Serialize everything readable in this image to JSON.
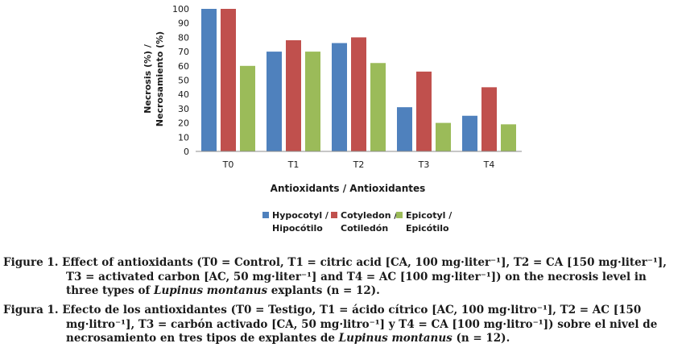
{
  "chart_data": {
    "type": "bar",
    "categories": [
      "T0",
      "T1",
      "T2",
      "T3",
      "T4"
    ],
    "series": [
      {
        "name": "Hypocotyl / Hipocótilo",
        "name_line1": "Hypocotyl /",
        "name_line2": "Hipocótilo",
        "color": "#4F81BD",
        "values": [
          100,
          70,
          76,
          31,
          25
        ]
      },
      {
        "name": "Cotyledon / Cotiledón",
        "name_line1": "Cotyledon /",
        "name_line2": "Cotiledón",
        "color": "#C0504D",
        "values": [
          100,
          78,
          80,
          56,
          45
        ]
      },
      {
        "name": "Epicotyl / Epicótilo",
        "name_line1": "Epicotyl /",
        "name_line2": "Epicótilo",
        "color": "#9BBB59",
        "values": [
          60,
          70,
          62,
          20,
          19
        ]
      }
    ],
    "ylabel_line1": "Necrosis (%) /",
    "ylabel_line2": "Necrosamiento (%)",
    "xlabel": "Antioxidants / Antioxidantes",
    "ylim": [
      0,
      100
    ],
    "yticks": [
      0,
      10,
      20,
      30,
      40,
      50,
      60,
      70,
      80,
      90,
      100
    ],
    "legend_position": "bottom"
  },
  "caption_en": {
    "prefix": "Figure 1. Effect of antioxidants (T0 = Control, T1 = citric acid [CA, 100 mg·liter⁻¹], T2 = CA [150 mg·liter⁻¹], T3 = activated carbon [AC, 50 mg·liter⁻¹] and T4 = AC [100 mg·liter⁻¹]) on the necrosis level in three types of ",
    "species": "Lupinus montanus",
    "suffix": " explants (n = 12)."
  },
  "caption_es": {
    "prefix": "Figura 1. Efecto de los antioxidantes (T0 = Testigo, T1 = ácido cítrico [AC, 100 mg·litro⁻¹], T2 = AC [150 mg·litro⁻¹], T3 = carbón activado [CA, 50 mg·litro⁻¹] y T4 = CA [100 mg·litro⁻¹]) sobre el nivel de necrosamiento en tres tipos de explantes de ",
    "species": "Lupinus montanus",
    "suffix": " (n = 12)."
  }
}
